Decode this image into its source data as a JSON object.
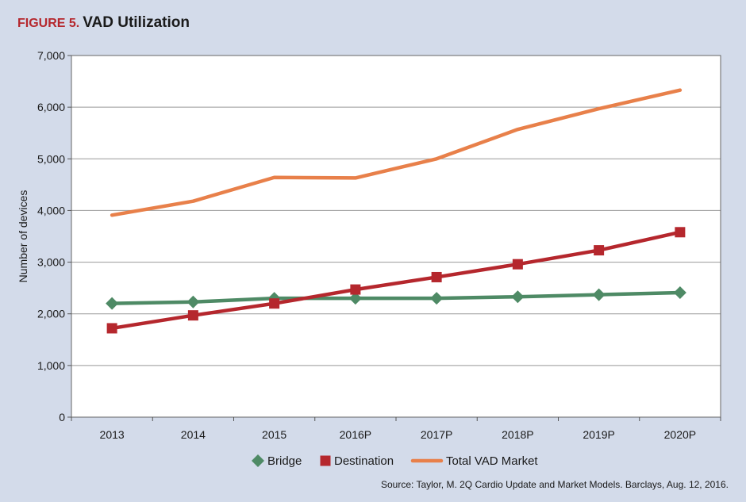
{
  "figure": {
    "label": "FIGURE 5.",
    "title": "VAD Utilization",
    "source": "Source: Taylor, M. 2Q Cardio Update and Market Models. Barclays, Aug. 12, 2016."
  },
  "colors": {
    "background": "#d3dbea",
    "plot_background": "#ffffff",
    "figure_label": "#b5272d",
    "bridge": "#4e8a65",
    "destination": "#b5272d",
    "total": "#e8804a"
  },
  "chart_data": {
    "type": "line",
    "title": "VAD Utilization",
    "xlabel": "",
    "ylabel": "Number of devices",
    "categories": [
      "2013",
      "2014",
      "2015",
      "2016P",
      "2017P",
      "2018P",
      "2019P",
      "2020P"
    ],
    "ylim": [
      0,
      7000
    ],
    "yticks": [
      0,
      1000,
      2000,
      3000,
      4000,
      5000,
      6000,
      7000
    ],
    "ytick_labels": [
      "0",
      "1,000",
      "2,000",
      "3,000",
      "4,000",
      "5,000",
      "6,000",
      "7,000"
    ],
    "grid": true,
    "legend_position": "bottom",
    "series": [
      {
        "name": "Bridge",
        "marker": "diamond",
        "color": "#4e8a65",
        "values": [
          2200,
          2230,
          2300,
          2300,
          2300,
          2330,
          2370,
          2410
        ]
      },
      {
        "name": "Destination",
        "marker": "square",
        "color": "#b5272d",
        "values": [
          1720,
          1970,
          2200,
          2470,
          2710,
          2960,
          3230,
          3580
        ]
      },
      {
        "name": "Total VAD Market",
        "marker": "none",
        "color": "#e8804a",
        "values": [
          3910,
          4180,
          4640,
          4630,
          5000,
          5570,
          5970,
          6330
        ]
      }
    ]
  }
}
